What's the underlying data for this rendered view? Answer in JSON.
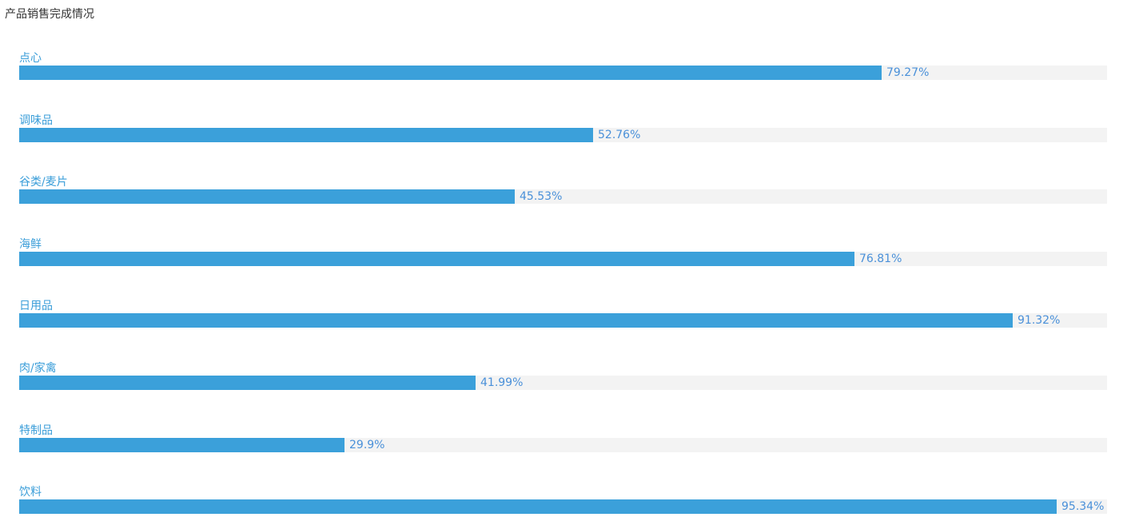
{
  "chart_data": {
    "type": "bar",
    "orientation": "horizontal",
    "title": "产品销售完成情况",
    "categories": [
      "点心",
      "调味品",
      "谷类/麦片",
      "海鲜",
      "日用品",
      "肉/家禽",
      "特制品",
      "饮料"
    ],
    "values": [
      79.27,
      52.76,
      45.53,
      76.81,
      91.32,
      41.99,
      29.9,
      95.34
    ],
    "value_labels": [
      "79.27%",
      "52.76%",
      "45.53%",
      "76.81%",
      "91.32%",
      "41.99%",
      "29.9%",
      "95.34%"
    ],
    "xlim": [
      0,
      100
    ],
    "grid": false,
    "legend": "none"
  },
  "colors": {
    "bar": "#3ba0da",
    "track": "#f3f3f3",
    "label": "#3b9ed9",
    "value": "#4a90d9",
    "title": "#333333"
  }
}
